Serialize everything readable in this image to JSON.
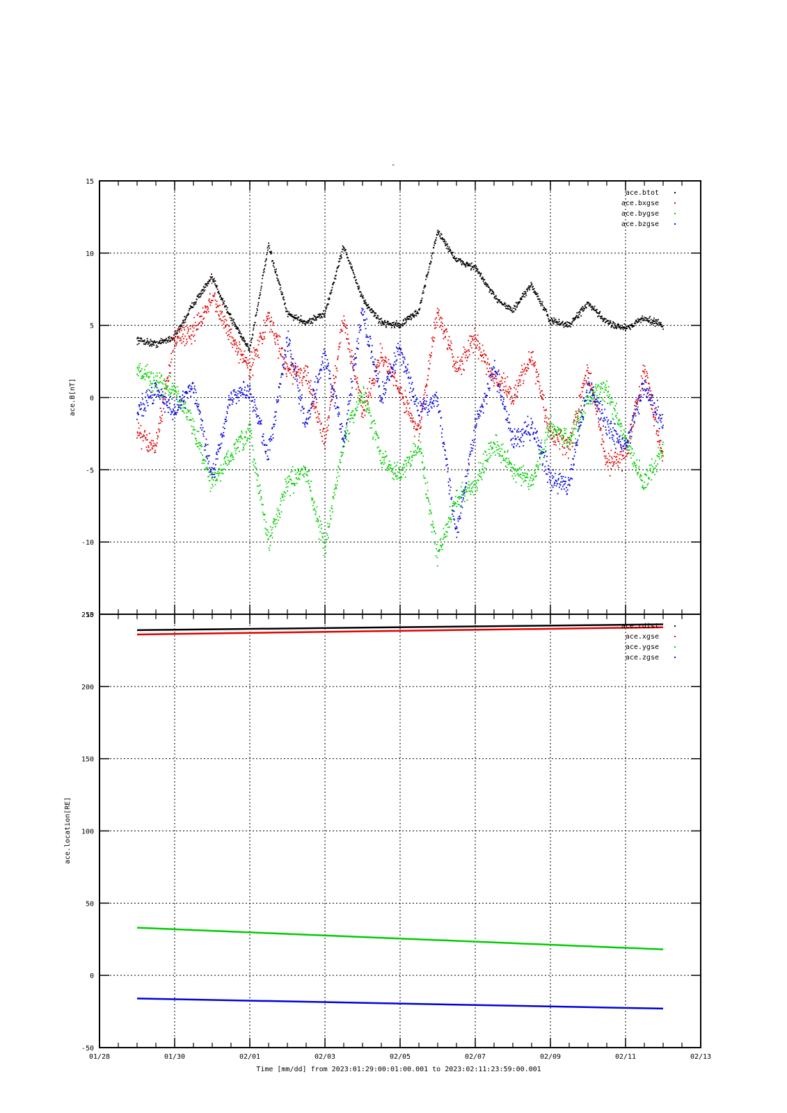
{
  "figure": {
    "title": "-",
    "xlabel": "Time [mm/dd]  from 2023:01:29:00:01:00.001  to  2023:02:11:23:59:00.001"
  },
  "chart_data": [
    {
      "type": "scatter",
      "ylabel": "ace.B[nT]",
      "ylim": [
        -15,
        15
      ],
      "xlim": [
        "01/28",
        "02/13"
      ],
      "grid": true,
      "legend_position": "top-right",
      "x_ticks": [
        "01/28",
        "01/30",
        "02/01",
        "02/03",
        "02/05",
        "02/07",
        "02/09",
        "02/11",
        "02/13"
      ],
      "y_ticks": [
        "-15",
        "-10",
        "-5",
        "0",
        "5",
        "10",
        "15"
      ],
      "x": [
        "01/29",
        "01/29.5",
        "01/30",
        "01/30.5",
        "01/31",
        "01/31.5",
        "02/01",
        "02/01.5",
        "02/02",
        "02/02.5",
        "02/03",
        "02/03.5",
        "02/04",
        "02/04.5",
        "02/05",
        "02/05.5",
        "02/06",
        "02/06.5",
        "02/07",
        "02/07.5",
        "02/08",
        "02/08.5",
        "02/09",
        "02/09.5",
        "02/10",
        "02/10.5",
        "02/11",
        "02/11.5",
        "02/12"
      ],
      "series": [
        {
          "name": "ace.btot",
          "color": "#000000",
          "values": [
            4.0,
            3.7,
            4.2,
            6.5,
            8.3,
            5.5,
            3.3,
            10.5,
            5.8,
            5.2,
            5.8,
            10.5,
            6.8,
            5.2,
            5.0,
            6.0,
            11.5,
            9.5,
            9.0,
            7.0,
            6.0,
            7.8,
            5.3,
            5.0,
            6.5,
            5.2,
            4.8,
            5.5,
            5.0
          ]
        },
        {
          "name": "ace.bxgse",
          "color": "#e00000",
          "values": [
            -2.5,
            -3.5,
            4.2,
            4.5,
            7.0,
            4.2,
            2.0,
            5.5,
            2.0,
            1.5,
            -3.0,
            5.5,
            -1.0,
            3.0,
            0.5,
            -2.5,
            6.0,
            2.0,
            4.0,
            1.5,
            0.0,
            3.0,
            -2.5,
            -3.5,
            2.0,
            -4.5,
            -4.0,
            2.0,
            -4.0
          ]
        },
        {
          "name": "ace.bygse",
          "color": "#00cc00",
          "values": [
            2.0,
            1.0,
            0.5,
            -2.0,
            -6.0,
            -4.0,
            -2.5,
            -10.0,
            -6.0,
            -5.0,
            -10.5,
            -3.0,
            0.5,
            -4.0,
            -5.5,
            -3.0,
            -11.0,
            -7.0,
            -6.0,
            -3.0,
            -5.0,
            -6.0,
            -2.0,
            -3.0,
            0.0,
            0.5,
            -3.0,
            -6.0,
            -3.5
          ]
        },
        {
          "name": "ace.bzgse",
          "color": "#0000dd",
          "values": [
            -1.0,
            0.5,
            -1.0,
            1.0,
            -5.5,
            0.0,
            0.5,
            -4.0,
            4.0,
            -2.0,
            3.0,
            -3.0,
            6.0,
            0.0,
            3.5,
            -1.0,
            0.0,
            -9.5,
            -2.0,
            2.0,
            -3.0,
            -2.0,
            -5.5,
            -6.0,
            1.0,
            -2.0,
            -3.5,
            1.0,
            -2.0
          ]
        }
      ]
    },
    {
      "type": "line",
      "ylabel": "ace.location[RE]",
      "ylim": [
        -50,
        250
      ],
      "xlim": [
        "01/28",
        "02/13"
      ],
      "grid": true,
      "legend_position": "top-right",
      "x_ticks": [
        "01/28",
        "01/30",
        "02/01",
        "02/03",
        "02/05",
        "02/07",
        "02/09",
        "02/11",
        "02/13"
      ],
      "y_ticks": [
        "-50",
        "0",
        "50",
        "100",
        "150",
        "200",
        "250"
      ],
      "x": [
        "01/29",
        "02/12"
      ],
      "series": [
        {
          "name": "ace.rdist",
          "color": "#000000",
          "values": [
            239,
            243
          ]
        },
        {
          "name": "ace.xgse",
          "color": "#e00000",
          "values": [
            236,
            241
          ]
        },
        {
          "name": "ace.ygse",
          "color": "#00cc00",
          "values": [
            33,
            18
          ]
        },
        {
          "name": "ace.zgse",
          "color": "#0000dd",
          "values": [
            -16,
            -23
          ]
        }
      ]
    }
  ]
}
